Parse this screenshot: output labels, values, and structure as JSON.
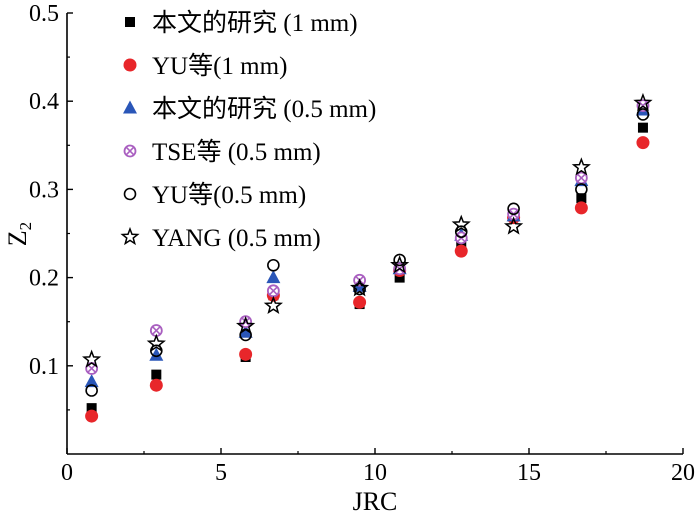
{
  "chart_data": {
    "type": "scatter",
    "title": "",
    "xlabel": "JRC",
    "ylabel": "Z",
    "ylabel_subscript": "2",
    "xlim": [
      0,
      20
    ],
    "ylim": [
      0,
      0.5
    ],
    "xticks": [
      0,
      5,
      10,
      15,
      20
    ],
    "yticks": [
      0.1,
      0.2,
      0.3,
      0.4,
      0.5
    ],
    "xtick_labels": [
      "0",
      "5",
      "10",
      "15",
      "20"
    ],
    "ytick_labels": [
      "0.1",
      "0.2",
      "0.3",
      "0.4",
      "0.5"
    ],
    "grid": false,
    "legend_position": "top-left",
    "series": [
      {
        "name": "本文的研究 (1 mm)",
        "marker": "square-filled",
        "color": "#000000",
        "x": [
          0.8,
          2.9,
          5.8,
          6.7,
          9.5,
          10.8,
          12.8,
          14.5,
          16.7,
          18.7
        ],
        "y": [
          0.052,
          0.09,
          0.11,
          0.18,
          0.17,
          0.2,
          0.235,
          0.27,
          0.29,
          0.37
        ]
      },
      {
        "name": "YU等(1 mm)",
        "marker": "circle-filled",
        "color": "#e8262a",
        "x": [
          0.8,
          2.9,
          5.8,
          6.7,
          9.5,
          10.8,
          12.8,
          14.5,
          16.7,
          18.7
        ],
        "y": [
          0.043,
          0.078,
          0.113,
          0.18,
          0.172,
          0.208,
          0.23,
          0.268,
          0.279,
          0.353
        ]
      },
      {
        "name": "本文的研究 (0.5 mm)",
        "marker": "triangle-filled",
        "color": "#2a56b8",
        "x": [
          0.8,
          2.9,
          5.8,
          6.7,
          9.5,
          10.8,
          12.8,
          14.5,
          16.7,
          18.7
        ],
        "y": [
          0.082,
          0.112,
          0.138,
          0.2,
          0.19,
          0.21,
          0.248,
          0.27,
          0.31,
          0.39
        ]
      },
      {
        "name": "TSE等 (0.5 mm)",
        "marker": "crossed-circle",
        "color": "#a95fc0",
        "x": [
          0.8,
          2.9,
          5.8,
          6.7,
          9.5,
          10.8,
          12.8,
          14.5,
          16.7,
          18.7
        ],
        "y": [
          0.097,
          0.14,
          0.15,
          0.185,
          0.197,
          0.21,
          0.245,
          0.272,
          0.313,
          0.395
        ]
      },
      {
        "name": "YU等(0.5 mm)",
        "marker": "circle-open",
        "color": "#000000",
        "x": [
          0.8,
          2.9,
          5.8,
          6.7,
          9.5,
          10.8,
          12.8,
          14.5,
          16.7,
          18.7
        ],
        "y": [
          0.072,
          0.117,
          0.135,
          0.214,
          0.187,
          0.22,
          0.252,
          0.278,
          0.3,
          0.385
        ]
      },
      {
        "name": "YANG (0.5 mm)",
        "marker": "star-open",
        "color": "#000000",
        "x": [
          0.8,
          2.9,
          5.8,
          6.7,
          9.5,
          10.8,
          12.8,
          14.5,
          16.7,
          18.7
        ],
        "y": [
          0.107,
          0.125,
          0.145,
          0.168,
          0.188,
          0.214,
          0.26,
          0.258,
          0.325,
          0.398
        ]
      }
    ]
  }
}
